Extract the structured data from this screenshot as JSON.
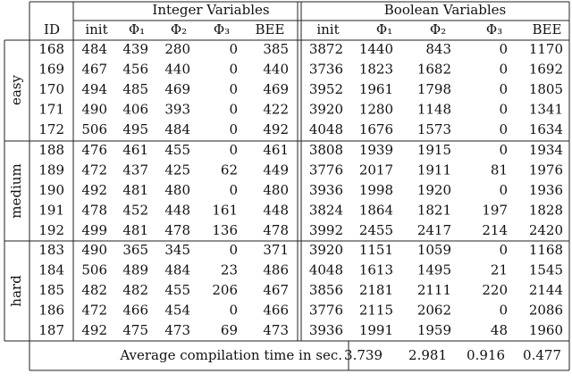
{
  "table": {
    "header": {
      "id": "ID",
      "integer": "Integer Variables",
      "boolean": "Boolean Variables",
      "integer_columns": [
        "init",
        "Φ₁",
        "Φ₂",
        "Φ₃",
        "BEE"
      ],
      "boolean_columns": [
        "init",
        "Φ₁",
        "Φ₂",
        "Φ₃",
        "BEE"
      ]
    },
    "groups": [
      {
        "label": "easy",
        "rows": [
          [
            168,
            484,
            439,
            280,
            0,
            385,
            3872,
            1440,
            843,
            0,
            1170
          ],
          [
            169,
            467,
            456,
            440,
            0,
            440,
            3736,
            1823,
            1682,
            0,
            1692
          ],
          [
            170,
            494,
            485,
            469,
            0,
            469,
            3952,
            1961,
            1798,
            0,
            1805
          ],
          [
            171,
            490,
            406,
            393,
            0,
            422,
            3920,
            1280,
            1148,
            0,
            1341
          ],
          [
            172,
            506,
            495,
            484,
            0,
            492,
            4048,
            1676,
            1573,
            0,
            1634
          ]
        ]
      },
      {
        "label": "medium",
        "rows": [
          [
            188,
            476,
            461,
            455,
            0,
            461,
            3808,
            1939,
            1915,
            0,
            1934
          ],
          [
            189,
            472,
            437,
            425,
            62,
            449,
            3776,
            2017,
            1911,
            81,
            1976
          ],
          [
            190,
            492,
            481,
            480,
            0,
            480,
            3936,
            1998,
            1920,
            0,
            1936
          ],
          [
            191,
            478,
            452,
            448,
            161,
            448,
            3824,
            1864,
            1821,
            197,
            1828
          ],
          [
            192,
            499,
            481,
            478,
            136,
            478,
            3992,
            2455,
            2417,
            214,
            2420
          ]
        ]
      },
      {
        "label": "hard",
        "rows": [
          [
            183,
            490,
            365,
            345,
            0,
            371,
            3920,
            1151,
            1059,
            0,
            1168
          ],
          [
            184,
            506,
            489,
            484,
            23,
            486,
            4048,
            1613,
            1495,
            21,
            1545
          ],
          [
            185,
            482,
            482,
            455,
            206,
            467,
            3856,
            2181,
            2111,
            220,
            2144
          ],
          [
            186,
            472,
            466,
            454,
            0,
            466,
            3776,
            2115,
            2062,
            0,
            2086
          ],
          [
            187,
            492,
            475,
            473,
            69,
            473,
            3936,
            1991,
            1959,
            48,
            1960
          ]
        ]
      }
    ],
    "footer": {
      "label": "Average compilation time in sec.",
      "values": [
        3.739,
        2.981,
        0.916,
        0.477
      ]
    }
  }
}
